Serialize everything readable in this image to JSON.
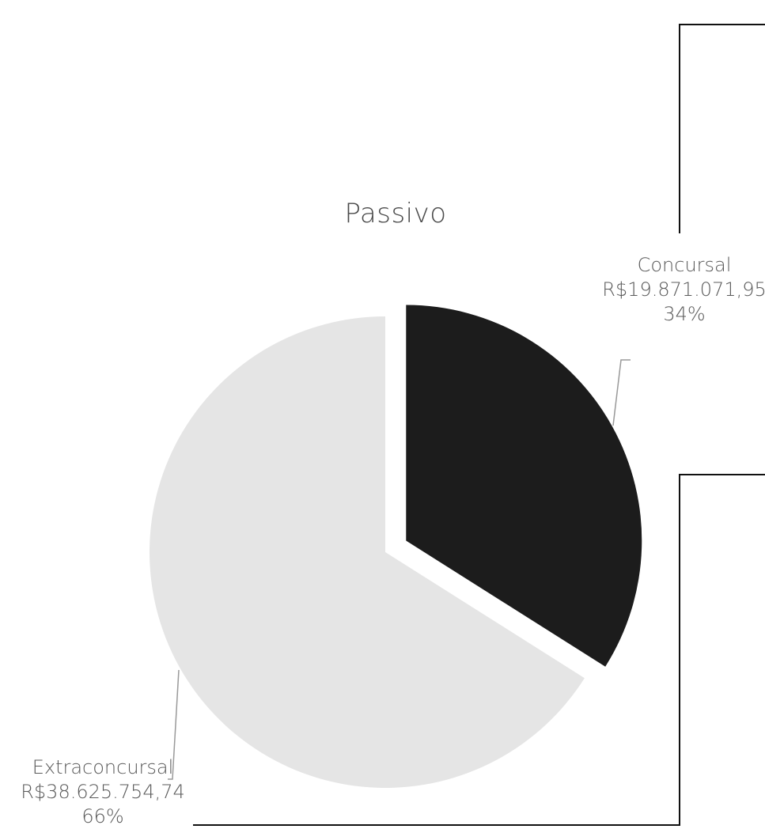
{
  "chart_data": {
    "type": "pie",
    "title": "Passivo",
    "slices": [
      {
        "label": "Concursal",
        "value": 19871071.95,
        "value_text": "R$19.871.071,95",
        "percent_text": "34%",
        "color": "#1c1c1c"
      },
      {
        "label": "Extraconcursal",
        "value": 38625754.74,
        "value_text": "R$38.625.754,74",
        "percent_text": "66%",
        "color": "#e5e5e5"
      }
    ],
    "start_angle": "12 o'clock",
    "direction": "clockwise",
    "exploded_slice": "Concursal",
    "legend": "none"
  }
}
